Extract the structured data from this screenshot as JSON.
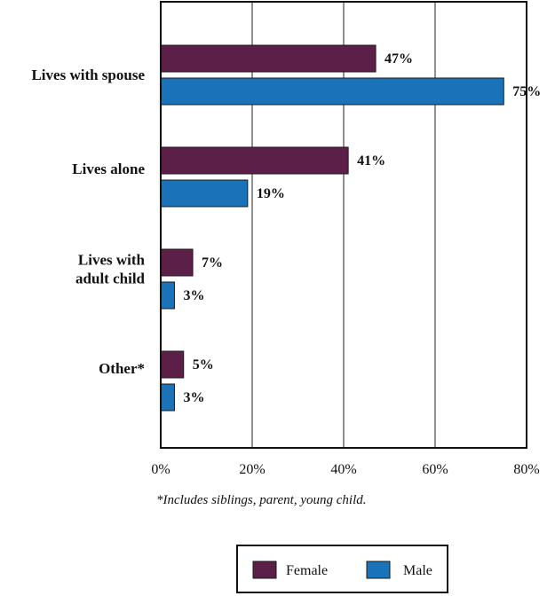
{
  "chart_data": {
    "type": "bar",
    "orientation": "horizontal",
    "categories": [
      [
        "Lives with spouse"
      ],
      [
        "Lives alone"
      ],
      [
        "Lives with",
        "adult child"
      ],
      [
        "Other*"
      ]
    ],
    "series": [
      {
        "name": "Female",
        "color": "#5c1f48",
        "values": [
          47,
          41,
          7,
          5
        ],
        "labels": [
          "47%",
          "41%",
          "7%",
          "5%"
        ]
      },
      {
        "name": "Male",
        "color": "#1a73b8",
        "values": [
          75,
          19,
          3,
          3
        ],
        "labels": [
          "75%",
          "19%",
          "3%",
          "3%"
        ]
      }
    ],
    "xlim": [
      0,
      80
    ],
    "xticks": [
      0,
      20,
      40,
      60,
      80
    ],
    "xtick_labels": [
      "0%",
      "20%",
      "40%",
      "60%",
      "80%"
    ],
    "grid": true,
    "legend_position": "bottom"
  },
  "footnote": "*Includes siblings, parent, young child."
}
